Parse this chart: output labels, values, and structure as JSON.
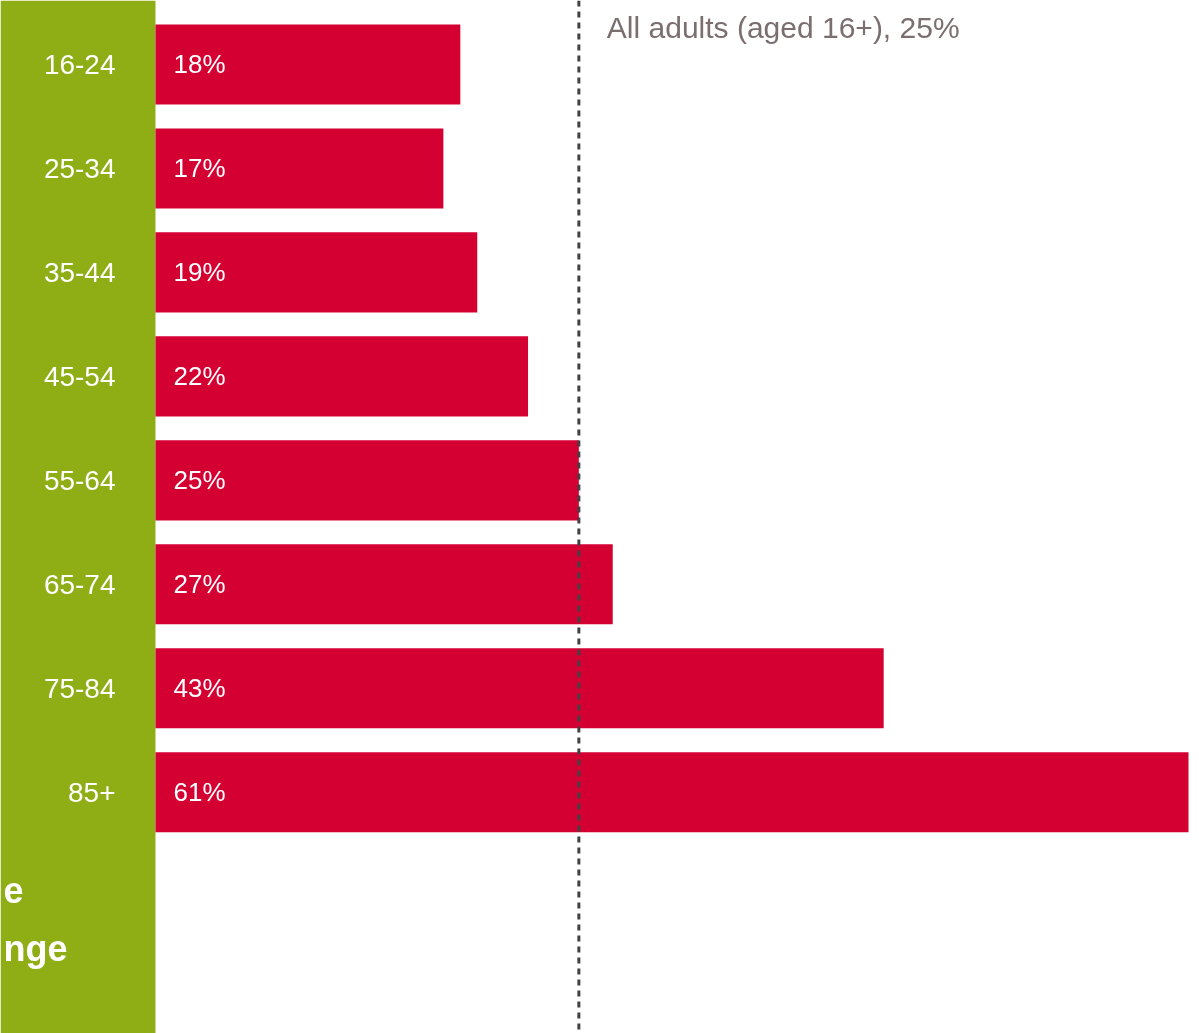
{
  "chart_data": {
    "type": "bar",
    "orientation": "horizontal",
    "categories": [
      "16-24",
      "25-34",
      "35-44",
      "45-54",
      "55-64",
      "65-74",
      "75-84",
      "85+"
    ],
    "values": [
      18,
      17,
      19,
      22,
      25,
      27,
      43,
      61
    ],
    "value_labels": [
      "18%",
      "17%",
      "19%",
      "22%",
      "25%",
      "27%",
      "43%",
      "61%"
    ],
    "color": "#d50032",
    "tick_labels": "y",
    "ref_lines": [
      {
        "axis": "x",
        "value": 25,
        "label": "All adults (aged 16+), 25%",
        "color": "#454045",
        "line_style": "dashed"
      }
    ],
    "annotations": [
      "e",
      "nge"
    ]
  }
}
